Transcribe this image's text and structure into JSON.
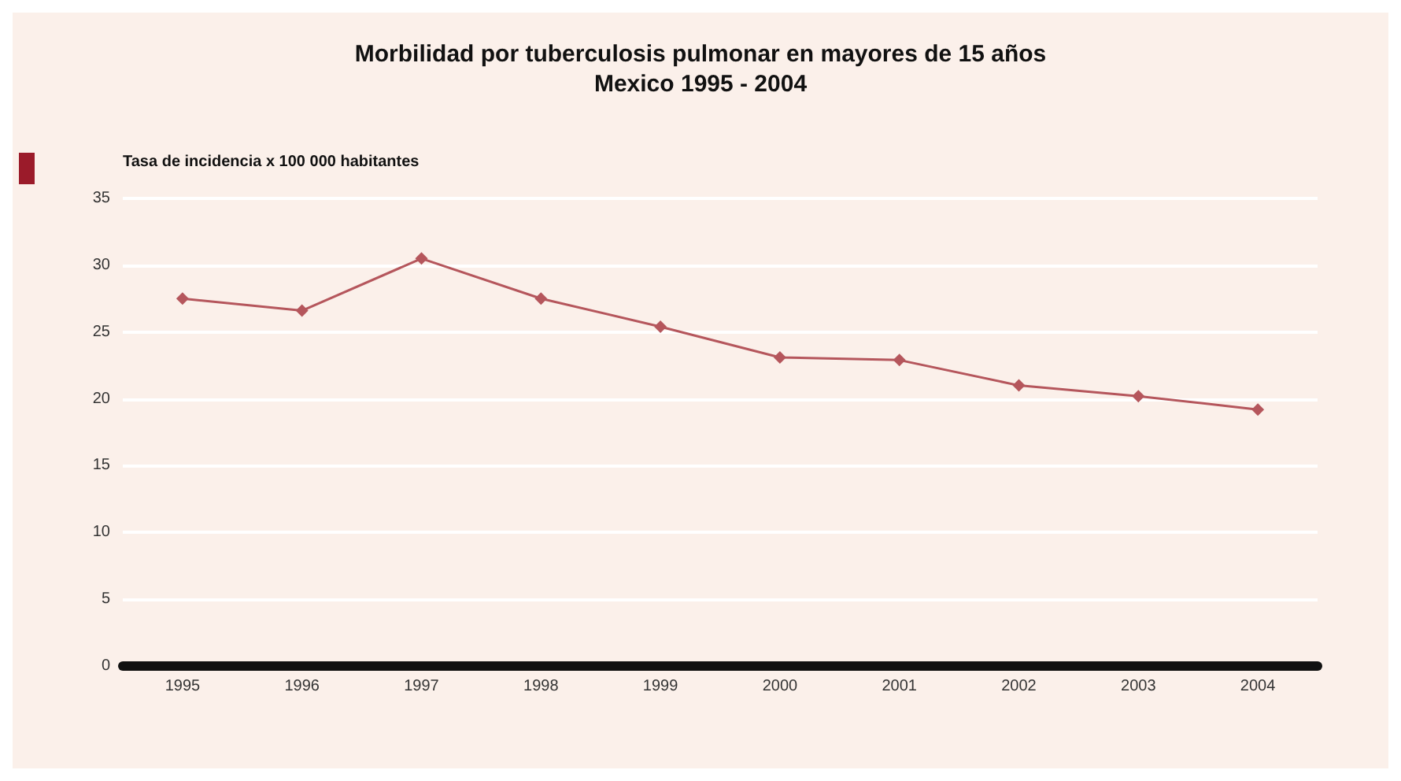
{
  "chart_data": {
    "type": "line",
    "title": "Morbilidad por tuberculosis pulmonar en mayores de 15 años\nMexico 1995 - 2004",
    "ylabel": "Tasa de incidencia x 100 000 habitantes",
    "categories": [
      "1995",
      "1996",
      "1997",
      "1998",
      "1999",
      "2000",
      "2001",
      "2002",
      "2003",
      "2004"
    ],
    "series": [
      {
        "color": "#b5565c",
        "values": [
          27.5,
          26.6,
          30.5,
          27.5,
          25.4,
          23.1,
          22.9,
          21.0,
          20.2,
          19.2
        ]
      }
    ],
    "ylim": [
      0,
      35
    ],
    "yticks": [
      0,
      5,
      10,
      15,
      20,
      25,
      30,
      35
    ],
    "grid": "y",
    "marker": "diamond",
    "line_style": "solid"
  }
}
